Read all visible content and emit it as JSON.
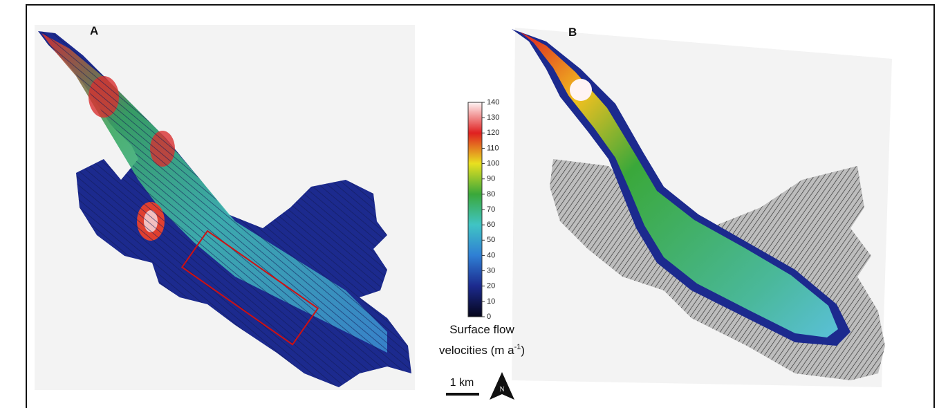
{
  "panels": [
    {
      "label": "A"
    },
    {
      "label": "B"
    }
  ],
  "colorbar": {
    "lim": [
      0,
      140
    ],
    "ticks": [
      0,
      10,
      20,
      30,
      40,
      50,
      60,
      70,
      80,
      90,
      100,
      110,
      120,
      130,
      140
    ],
    "colors": [
      "#05051a",
      "#1c2a8e",
      "#2f7fd4",
      "#40c4c4",
      "#3aa83a",
      "#e8e020",
      "#e02020",
      "#fff4f4"
    ],
    "title_lines": [
      "Surface flow",
      "velocities (m a"
    ],
    "title_sup": "-1",
    "title_end": ")"
  },
  "scale_bar": {
    "label": "1 km"
  },
  "north_arrow": {
    "label": "N"
  }
}
